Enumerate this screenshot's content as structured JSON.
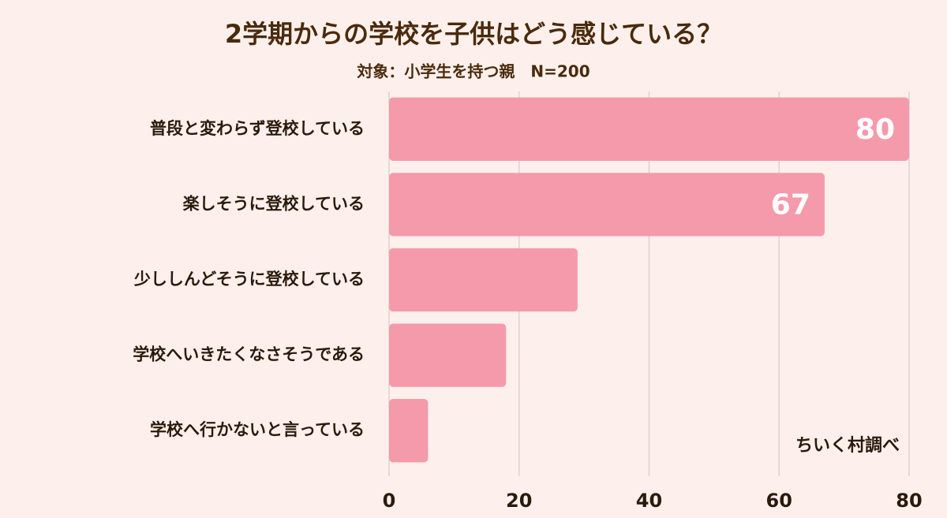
{
  "chart_data": {
    "type": "bar",
    "orientation": "horizontal",
    "title": "2学期からの学校を子供はどう感じている？",
    "subtitle": "対象：小学生を持つ親　N=200",
    "source": "ちいく村調べ",
    "categories": [
      "普段と変わらず登校している",
      "楽しそうに登校している",
      "少ししんどそうに登校している",
      "学校へいきたくなさそうである",
      "学校へ行かないと言っている"
    ],
    "values": [
      80,
      67,
      29,
      18,
      6
    ],
    "value_labels": [
      "80",
      "67",
      null,
      null,
      null
    ],
    "color": "#f59aab",
    "xlim": [
      0,
      80
    ],
    "xticks": [
      0,
      20,
      40,
      60,
      80
    ],
    "grid": true
  }
}
